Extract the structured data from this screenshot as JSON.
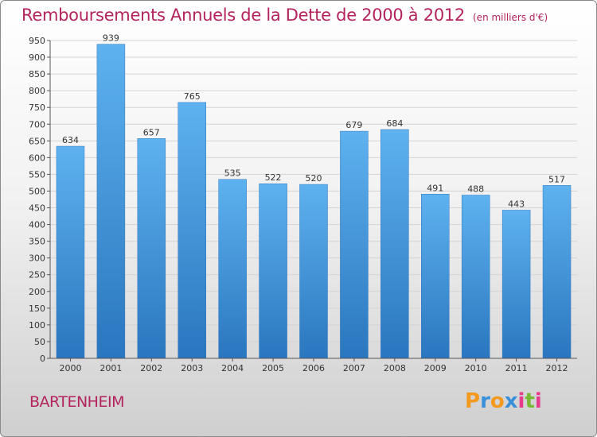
{
  "chart_data": {
    "type": "bar",
    "title": "Remboursements Annuels de la Dette de 2000 à 2012",
    "unit_label": "(en milliers d'€)",
    "categories": [
      "2000",
      "2001",
      "2002",
      "2003",
      "2004",
      "2005",
      "2006",
      "2007",
      "2008",
      "2009",
      "2010",
      "2011",
      "2012"
    ],
    "values": [
      634,
      939,
      657,
      765,
      535,
      522,
      520,
      679,
      684,
      491,
      488,
      443,
      517
    ],
    "value_labels": [
      "634",
      "939",
      "657",
      "765",
      "535",
      "522",
      "520",
      "679",
      "684",
      "491",
      "488",
      "443",
      "517"
    ],
    "y_ticks": [
      "0",
      "50",
      "100",
      "150",
      "200",
      "250",
      "300",
      "350",
      "400",
      "450",
      "500",
      "550",
      "600",
      "650",
      "700",
      "750",
      "800",
      "850",
      "900",
      "950"
    ],
    "ylim": [
      0,
      950
    ],
    "grid": true,
    "bar_color": "#4a9be0"
  },
  "footer": {
    "commune": "BARTENHEIM",
    "logo_letters": [
      "P",
      "r",
      "o",
      "x",
      "i",
      "t",
      "i"
    ],
    "logo_colors": [
      "#f39a1e",
      "#3a8fd9",
      "#f39a1e",
      "#3a8fd9",
      "#e83a8c",
      "#78b832",
      "#e83a8c"
    ]
  }
}
